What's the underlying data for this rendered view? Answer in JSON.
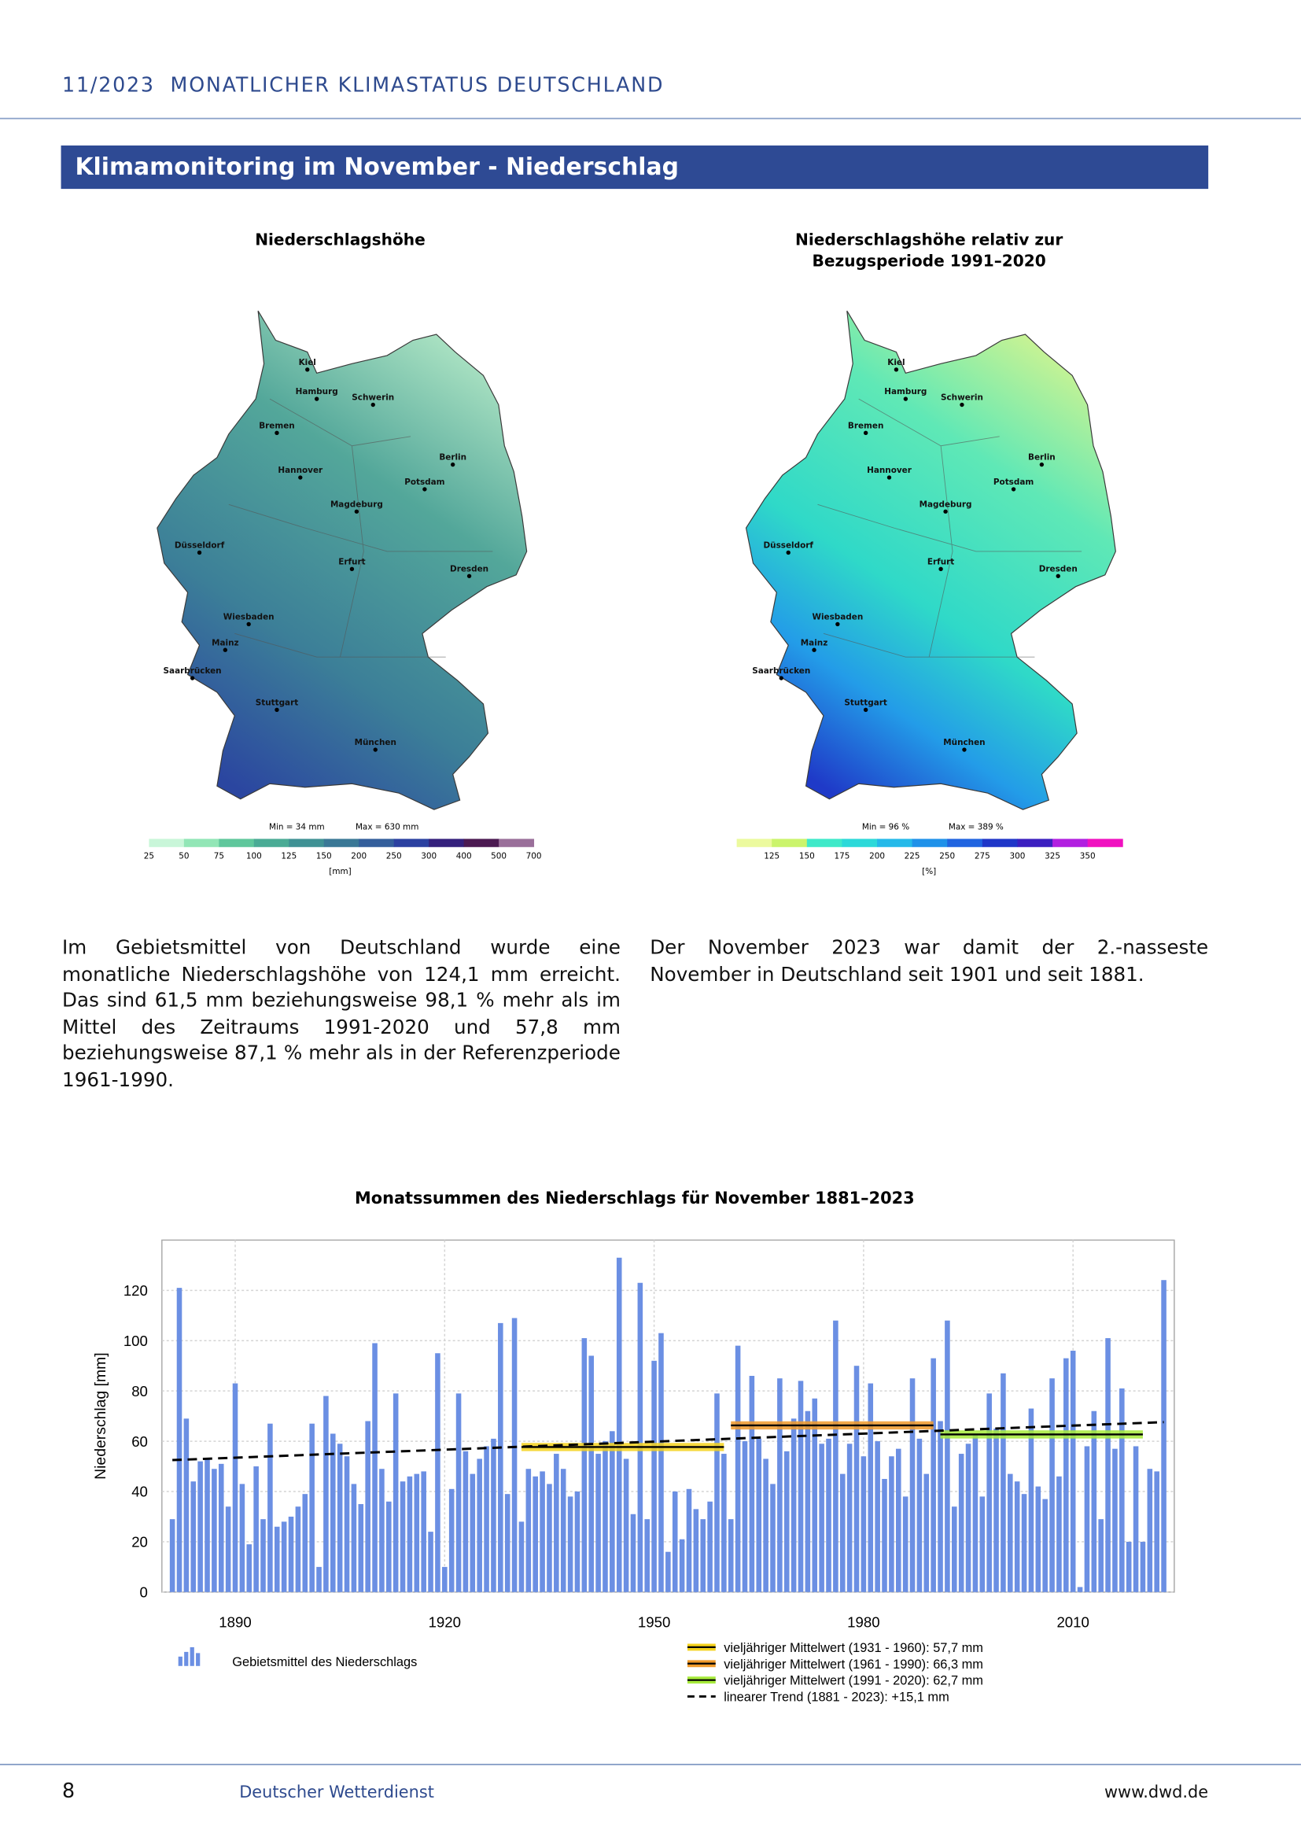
{
  "header": {
    "title": "11/2023  MONATLICHER KLIMASTATUS DEUTSCHLAND"
  },
  "section_title": "Klimamonitoring im November - Niederschlag",
  "maps": [
    {
      "title_lines": [
        "Niederschlagshöhe"
      ],
      "cities": [
        "Kiel",
        "Hamburg",
        "Schwerin",
        "Bremen",
        "Berlin",
        "Hannover",
        "Potsdam",
        "Magdeburg",
        "Düsseldorf",
        "Erfurt",
        "Dresden",
        "Wiesbaden",
        "Mainz",
        "Saarbrücken",
        "Stuttgart",
        "München"
      ],
      "min_label": "Min = 34 mm",
      "max_label": "Max = 630 mm",
      "scale_ticks": [
        25,
        50,
        75,
        100,
        125,
        150,
        200,
        250,
        300,
        400,
        500,
        700
      ],
      "scale_colors": [
        "#c9f6d9",
        "#92e6b6",
        "#5fc79c",
        "#4aab95",
        "#3f9194",
        "#3a7896",
        "#335e9b",
        "#2b40a0",
        "#34207c",
        "#4c1a52",
        "#9a6f9a"
      ],
      "unit": "[mm]"
    },
    {
      "title_lines": [
        "Niederschlagshöhe relativ zur",
        "Bezugsperiode 1991–2020"
      ],
      "cities": [
        "Kiel",
        "Hamburg",
        "Schwerin",
        "Bremen",
        "Berlin",
        "Hannover",
        "Potsdam",
        "Magdeburg",
        "Düsseldorf",
        "Erfurt",
        "Dresden",
        "Wiesbaden",
        "Mainz",
        "Saarbrücken",
        "Stuttgart",
        "München"
      ],
      "min_label": "Min = 96 %",
      "max_label": "Max = 389 %",
      "scale_ticks": [
        125,
        150,
        175,
        200,
        225,
        250,
        275,
        300,
        325,
        350
      ],
      "scale_colors": [
        "#ecfa9e",
        "#cbf46c",
        "#3ee9c9",
        "#2cd9d9",
        "#24b9e9",
        "#1f91e9",
        "#2064e0",
        "#1f36c8",
        "#3b1fc0",
        "#b11fe0",
        "#f011c0"
      ],
      "unit": "[%]"
    }
  ],
  "paragraphs": [
    "Im Gebietsmittel von Deutschland wurde eine monatliche Niederschlagshöhe von 124,1 mm erreicht. Das sind 61,5 mm beziehungsweise 98,1 % mehr als im Mittel des Zeitraums 1991-2020 und 57,8 mm beziehungsweise 87,1 % mehr als in der Referenzperiode 1961-1990.",
    "Der November 2023 war damit der 2.-nasseste November in Deutschland seit 1901 und seit 1881."
  ],
  "chart_data": {
    "type": "bar",
    "title": "Monatssummen des Niederschlags für November 1881–2023",
    "y_label": "Niederschlag [mm]",
    "xlim": [
      1879.5,
      2024.5
    ],
    "xticks": [
      1890,
      1920,
      1950,
      1980,
      2010
    ],
    "ylim": [
      0,
      140
    ],
    "yticks": [
      0,
      20,
      40,
      60,
      80,
      100,
      120
    ],
    "grid": true,
    "series": [
      {
        "name": "Gebietsmittel des Niederschlags",
        "type": "bar",
        "color": "#6b8fe3",
        "x": [
          1881,
          1882,
          1883,
          1884,
          1885,
          1886,
          1887,
          1888,
          1889,
          1890,
          1891,
          1892,
          1893,
          1894,
          1895,
          1896,
          1897,
          1898,
          1899,
          1900,
          1901,
          1902,
          1903,
          1904,
          1905,
          1906,
          1907,
          1908,
          1909,
          1910,
          1911,
          1912,
          1913,
          1914,
          1915,
          1916,
          1917,
          1918,
          1919,
          1920,
          1921,
          1922,
          1923,
          1924,
          1925,
          1926,
          1927,
          1928,
          1929,
          1930,
          1931,
          1932,
          1933,
          1934,
          1935,
          1936,
          1937,
          1938,
          1939,
          1940,
          1941,
          1942,
          1943,
          1944,
          1945,
          1946,
          1947,
          1948,
          1949,
          1950,
          1951,
          1952,
          1953,
          1954,
          1955,
          1956,
          1957,
          1958,
          1959,
          1960,
          1961,
          1962,
          1963,
          1964,
          1965,
          1966,
          1967,
          1968,
          1969,
          1970,
          1971,
          1972,
          1973,
          1974,
          1975,
          1976,
          1977,
          1978,
          1979,
          1980,
          1981,
          1982,
          1983,
          1984,
          1985,
          1986,
          1987,
          1988,
          1989,
          1990,
          1991,
          1992,
          1993,
          1994,
          1995,
          1996,
          1997,
          1998,
          1999,
          2000,
          2001,
          2002,
          2003,
          2004,
          2005,
          2006,
          2007,
          2008,
          2009,
          2010,
          2011,
          2012,
          2013,
          2014,
          2015,
          2016,
          2017,
          2018,
          2019,
          2020,
          2021,
          2022,
          2023
        ],
        "values": [
          29,
          121,
          69,
          44,
          52,
          53,
          49,
          51,
          34,
          83,
          43,
          19,
          50,
          29,
          67,
          26,
          28,
          30,
          34,
          39,
          67,
          10,
          78,
          63,
          59,
          54,
          43,
          35,
          68,
          99,
          49,
          36,
          79,
          44,
          46,
          47,
          48,
          24,
          95,
          10,
          41,
          79,
          56,
          47,
          53,
          58,
          61,
          107,
          39,
          109,
          28,
          49,
          46,
          48,
          43,
          55,
          49,
          38,
          40,
          101,
          94,
          55,
          60,
          64,
          133,
          53,
          31,
          123,
          29,
          92,
          103,
          16,
          40,
          21,
          41,
          33,
          29,
          36,
          79,
          55,
          29,
          98,
          60,
          86,
          61,
          53,
          43,
          85,
          56,
          69,
          84,
          72,
          77,
          59,
          61,
          108,
          47,
          59,
          90,
          54,
          83,
          60,
          45,
          54,
          57,
          38,
          85,
          61,
          47,
          93,
          68,
          108,
          34,
          55,
          59,
          63,
          38,
          79,
          65,
          87,
          47,
          44,
          39,
          73,
          42,
          37,
          85,
          46,
          93,
          96,
          2,
          58,
          72,
          29,
          101,
          57,
          81,
          20,
          58,
          20,
          49,
          48,
          124.1
        ]
      },
      {
        "name": "vieljähriger Mittelwert (1931 - 1960): 57,7 mm",
        "type": "line",
        "color": "#f5d21c",
        "x": [
          1931,
          1960
        ],
        "values": [
          57.7,
          57.7
        ]
      },
      {
        "name": "vieljähriger Mittelwert (1961 - 1990): 66,3 mm",
        "type": "line",
        "color": "#f09a2a",
        "x": [
          1961,
          1990
        ],
        "values": [
          66.3,
          66.3
        ]
      },
      {
        "name": "vieljähriger Mittelwert (1991 - 2020): 62,7 mm",
        "type": "line",
        "color": "#a6ea3a",
        "x": [
          1991,
          2020
        ],
        "values": [
          62.7,
          62.7
        ]
      },
      {
        "name": "linearer Trend (1881 - 2023): +15,1 mm",
        "type": "line",
        "color": "#000000",
        "dashed": true,
        "x": [
          1881,
          2023
        ],
        "values": [
          52.5,
          67.6
        ]
      }
    ]
  },
  "footer": {
    "page": "8",
    "publisher": "Deutscher Wetterdienst",
    "url": "www.dwd.de"
  }
}
